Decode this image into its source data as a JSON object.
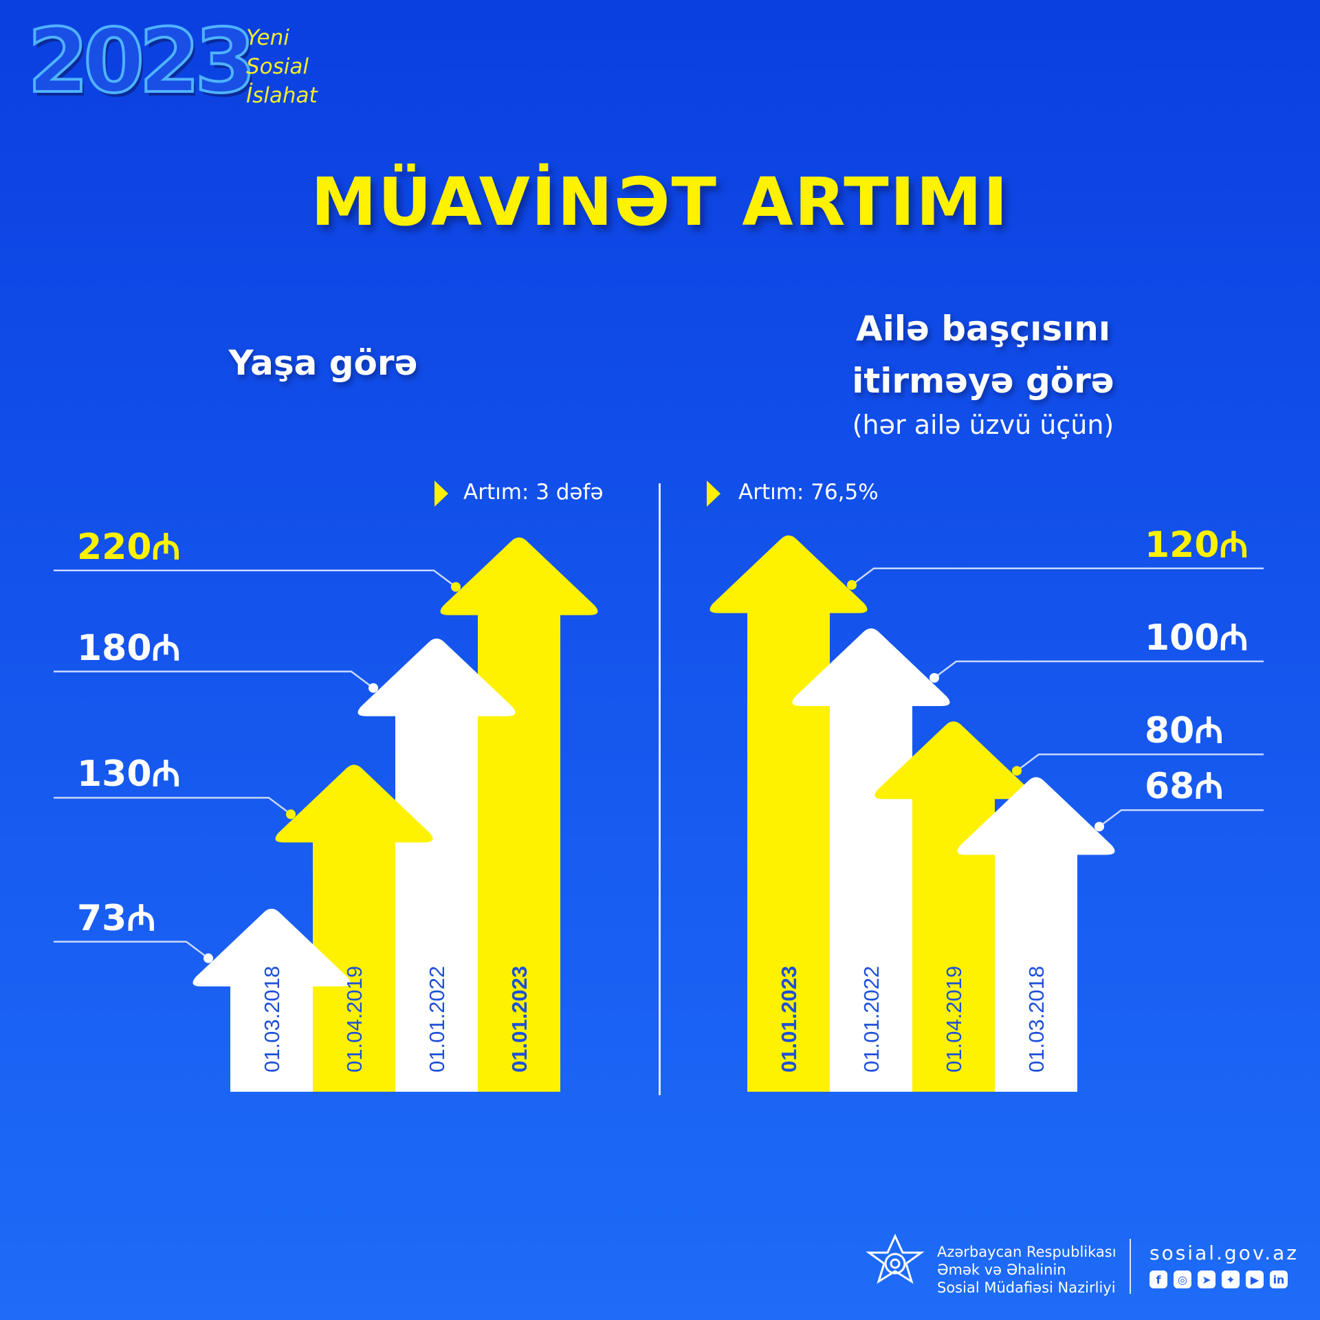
{
  "brand": {
    "year": "2023",
    "slogan": [
      "Yeni",
      "Sosial",
      "İslahat"
    ]
  },
  "title": "MÜAVİNƏT ARTIMI",
  "colors": {
    "yellow": "#fff200",
    "white": "#ffffff",
    "date_text": "#1d4fd8",
    "line": "#c8d8ff"
  },
  "currency_symbol": "₼",
  "panels": [
    {
      "subtitle_lines": [
        "Yaşa görə"
      ],
      "note": "",
      "growth": "Artım: 3 dəfə"
    },
    {
      "subtitle_lines": [
        "Ailə başçısını",
        "itirməyə görə"
      ],
      "note": "(hər ailə üzvü üçün)",
      "growth": "Artım: 76,5%"
    }
  ],
  "chart_data": [
    {
      "type": "bar",
      "categories": [
        "01.03.2018",
        "01.04.2019",
        "01.01.2022",
        "01.01.2023"
      ],
      "values": [
        73,
        130,
        180,
        220
      ],
      "value_labels": [
        "73",
        "130",
        "180",
        "220"
      ],
      "bar_colors": [
        "white",
        "yellow",
        "white",
        "yellow"
      ],
      "ylim": [
        0,
        230
      ],
      "highlight": "01.01.2023"
    },
    {
      "type": "bar",
      "categories": [
        "01.01.2023",
        "01.01.2022",
        "01.04.2019",
        "01.03.2018"
      ],
      "values": [
        120,
        100,
        80,
        68
      ],
      "value_labels": [
        "120",
        "100",
        "80",
        "68"
      ],
      "bar_colors": [
        "yellow",
        "white",
        "yellow",
        "white"
      ],
      "ylim": [
        0,
        125
      ],
      "highlight": "01.01.2023"
    }
  ],
  "footer": {
    "org_lines": [
      "Azərbaycan Respublikası",
      "Əmək və Əhalinin",
      "Sosial Müdafiəsi Nazirliyi"
    ],
    "url": "sosial.gov.az",
    "social_icons": [
      "facebook-icon",
      "instagram-icon",
      "telegram-icon",
      "twitter-icon",
      "youtube-icon",
      "linkedin-icon"
    ]
  }
}
